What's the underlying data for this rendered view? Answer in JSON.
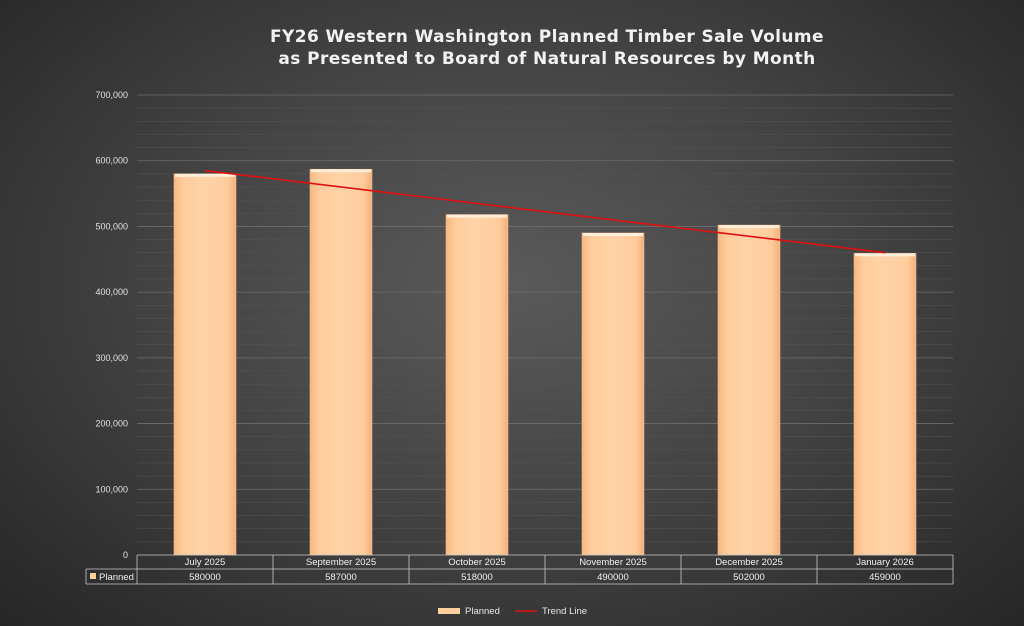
{
  "chart_data": {
    "type": "bar",
    "title": "FY26 Western Washington Planned Timber Sale Volume",
    "subtitle": "as Presented to Board of Natural Resources by Month",
    "categories": [
      "July 2025",
      "September 2025",
      "October 2025",
      "November 2025",
      "December 2025",
      "January 2026"
    ],
    "series": [
      {
        "name": "Planned",
        "values": [
          580000,
          587000,
          518000,
          490000,
          502000,
          459000
        ],
        "color": "#ffcf9e"
      }
    ],
    "trend_line": {
      "name": "Trend Line",
      "start": 585000,
      "end": 460000,
      "color": "#e01010"
    },
    "ylim": [
      0,
      700000
    ],
    "y_ticks": [
      "0",
      "100,000",
      "200,000",
      "300,000",
      "400,000",
      "500,000",
      "600,000",
      "700,000"
    ],
    "y_tick_values": [
      0,
      100000,
      200000,
      300000,
      400000,
      500000,
      600000,
      700000
    ],
    "grid": true,
    "legend_position": "bottom",
    "data_table": {
      "row_label": "Planned",
      "values": [
        "580000",
        "587000",
        "518000",
        "490000",
        "502000",
        "459000"
      ]
    },
    "legend": [
      {
        "label": "Planned",
        "kind": "bar",
        "color": "#ffcf9e"
      },
      {
        "label": "Trend Line",
        "kind": "line",
        "color": "#e01010"
      }
    ]
  }
}
